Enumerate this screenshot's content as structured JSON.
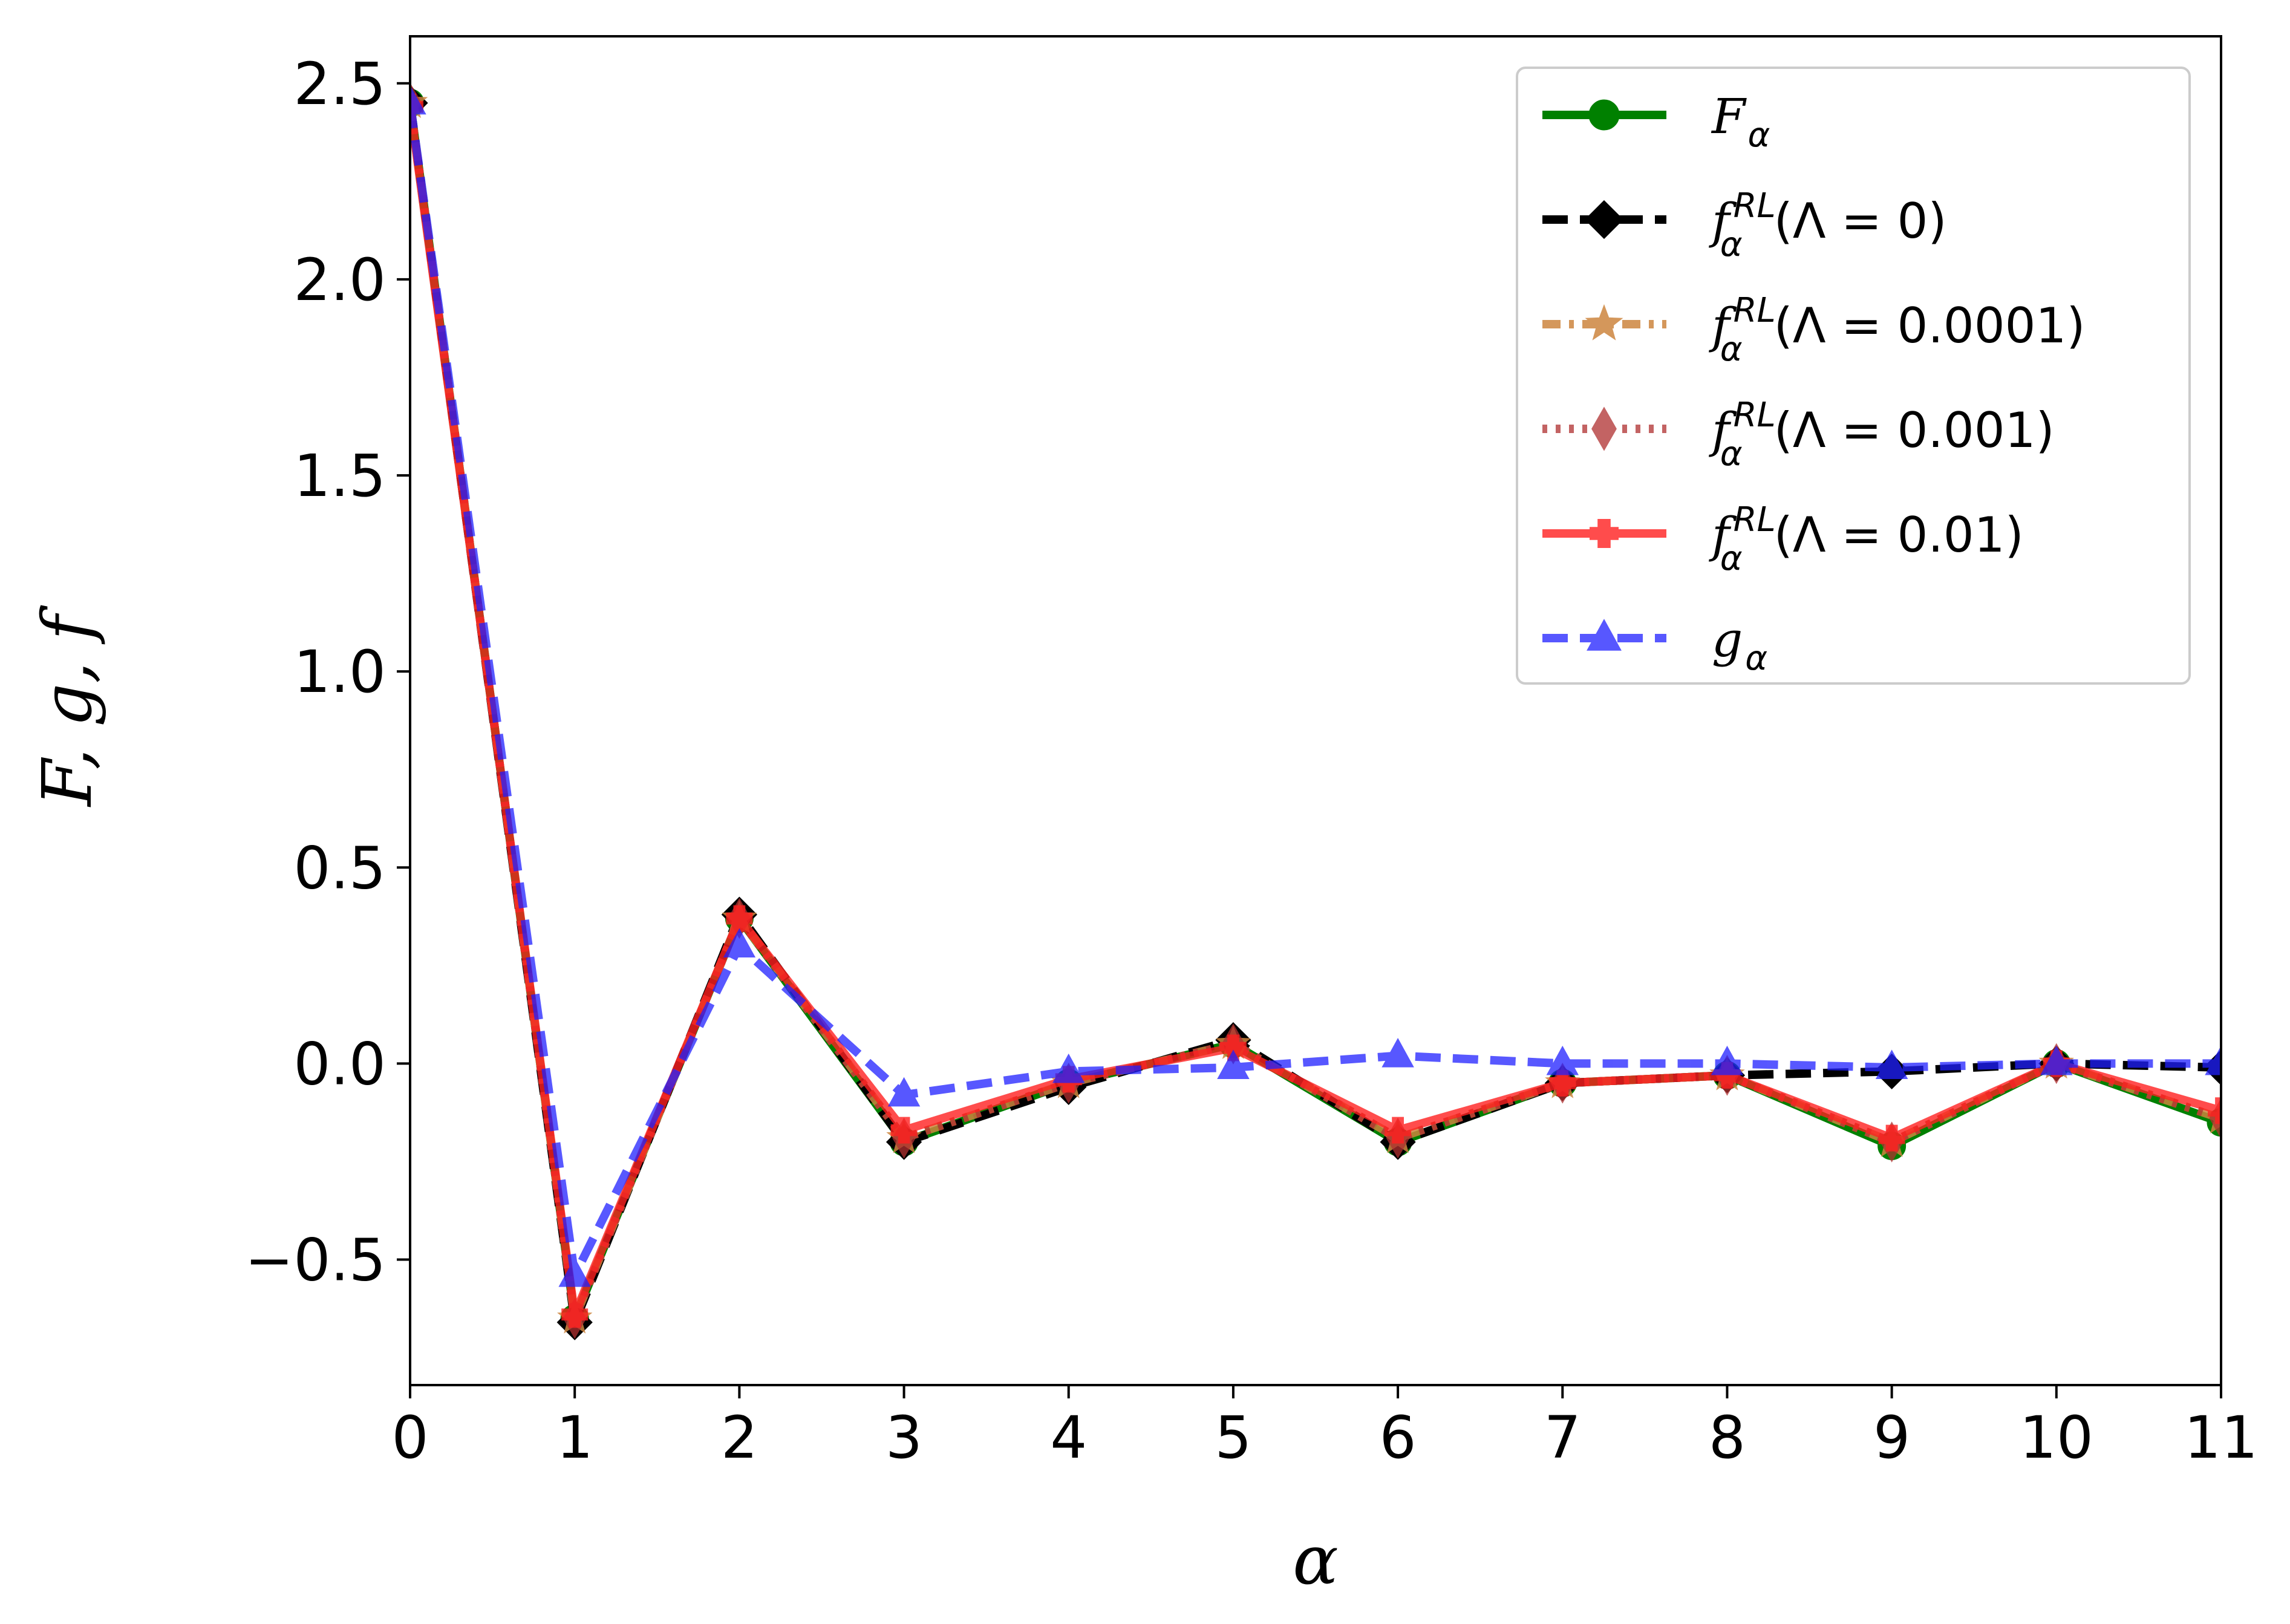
{
  "chart_data": {
    "type": "line",
    "xlabel": "α",
    "ylabel": "F, g, f",
    "xlim": [
      0,
      11
    ],
    "ylim": [
      -0.82,
      2.62
    ],
    "xticks": [
      "0",
      "1",
      "2",
      "3",
      "4",
      "5",
      "6",
      "7",
      "8",
      "9",
      "10",
      "11"
    ],
    "yticks": [
      "−0.5",
      "0.0",
      "0.5",
      "1.0",
      "1.5",
      "2.0",
      "2.5"
    ],
    "ytick_values": [
      -0.5,
      0.0,
      0.5,
      1.0,
      1.5,
      2.0,
      2.5
    ],
    "grid": false,
    "legend_position": "top-right",
    "x": [
      0,
      1,
      2,
      3,
      4,
      5,
      6,
      7,
      8,
      9,
      10,
      11
    ],
    "series": [
      {
        "name": "F_α",
        "legend": {
          "main": "F",
          "sub": "α",
          "sup": "",
          "tail": ""
        },
        "color": "#008000",
        "linestyle": "solid",
        "marker": "circle",
        "opacity": 1.0,
        "values": [
          2.45,
          -0.65,
          0.37,
          -0.2,
          -0.05,
          0.05,
          -0.2,
          -0.05,
          -0.03,
          -0.21,
          0.0,
          -0.15
        ]
      },
      {
        "name": "f_α^RL(Λ = 0)",
        "legend": {
          "main": "f",
          "sub": "α",
          "sup": "RL",
          "tail": "(Λ = 0)"
        },
        "color": "#000000",
        "linestyle": "dashed",
        "marker": "diamond",
        "opacity": 1.0,
        "values": [
          2.45,
          -0.66,
          0.38,
          -0.2,
          -0.06,
          0.06,
          -0.2,
          -0.05,
          -0.03,
          -0.02,
          0.0,
          -0.01
        ]
      },
      {
        "name": "f_α^RL(Λ = 0.0001)",
        "legend": {
          "main": "f",
          "sub": "α",
          "sup": "RL",
          "tail": "(Λ = 0.0001)"
        },
        "color": "#cd853f",
        "linestyle": "dashdot",
        "marker": "star",
        "opacity": 0.85,
        "values": [
          2.45,
          -0.65,
          0.37,
          -0.19,
          -0.05,
          0.05,
          -0.19,
          -0.05,
          -0.03,
          -0.2,
          0.0,
          -0.14
        ]
      },
      {
        "name": "f_α^RL(Λ = 0.001)",
        "legend": {
          "main": "f",
          "sub": "α",
          "sup": "RL",
          "tail": "(Λ = 0.001)"
        },
        "color": "#b03030",
        "linestyle": "dotted",
        "marker": "thin-diamond",
        "opacity": 0.75,
        "values": [
          2.45,
          -0.65,
          0.37,
          -0.19,
          -0.05,
          0.05,
          -0.19,
          -0.05,
          -0.03,
          -0.2,
          0.0,
          -0.14
        ]
      },
      {
        "name": "f_α^RL(Λ = 0.01)",
        "legend": {
          "main": "f",
          "sub": "α",
          "sup": "RL",
          "tail": "(Λ = 0.01)"
        },
        "color": "#ff2020",
        "linestyle": "solid",
        "marker": "plus",
        "opacity": 0.8,
        "values": [
          2.44,
          -0.64,
          0.37,
          -0.17,
          -0.04,
          0.04,
          -0.17,
          -0.05,
          -0.03,
          -0.19,
          0.0,
          -0.12
        ]
      },
      {
        "name": "g_α",
        "legend": {
          "main": "g",
          "sub": "α",
          "sup": "",
          "tail": ""
        },
        "color": "#2020ff",
        "linestyle": "dashed",
        "marker": "triangle",
        "opacity": 0.75,
        "values": [
          2.45,
          -0.54,
          0.3,
          -0.08,
          -0.02,
          -0.01,
          0.02,
          0.0,
          0.0,
          -0.01,
          0.0,
          0.0
        ]
      }
    ]
  }
}
